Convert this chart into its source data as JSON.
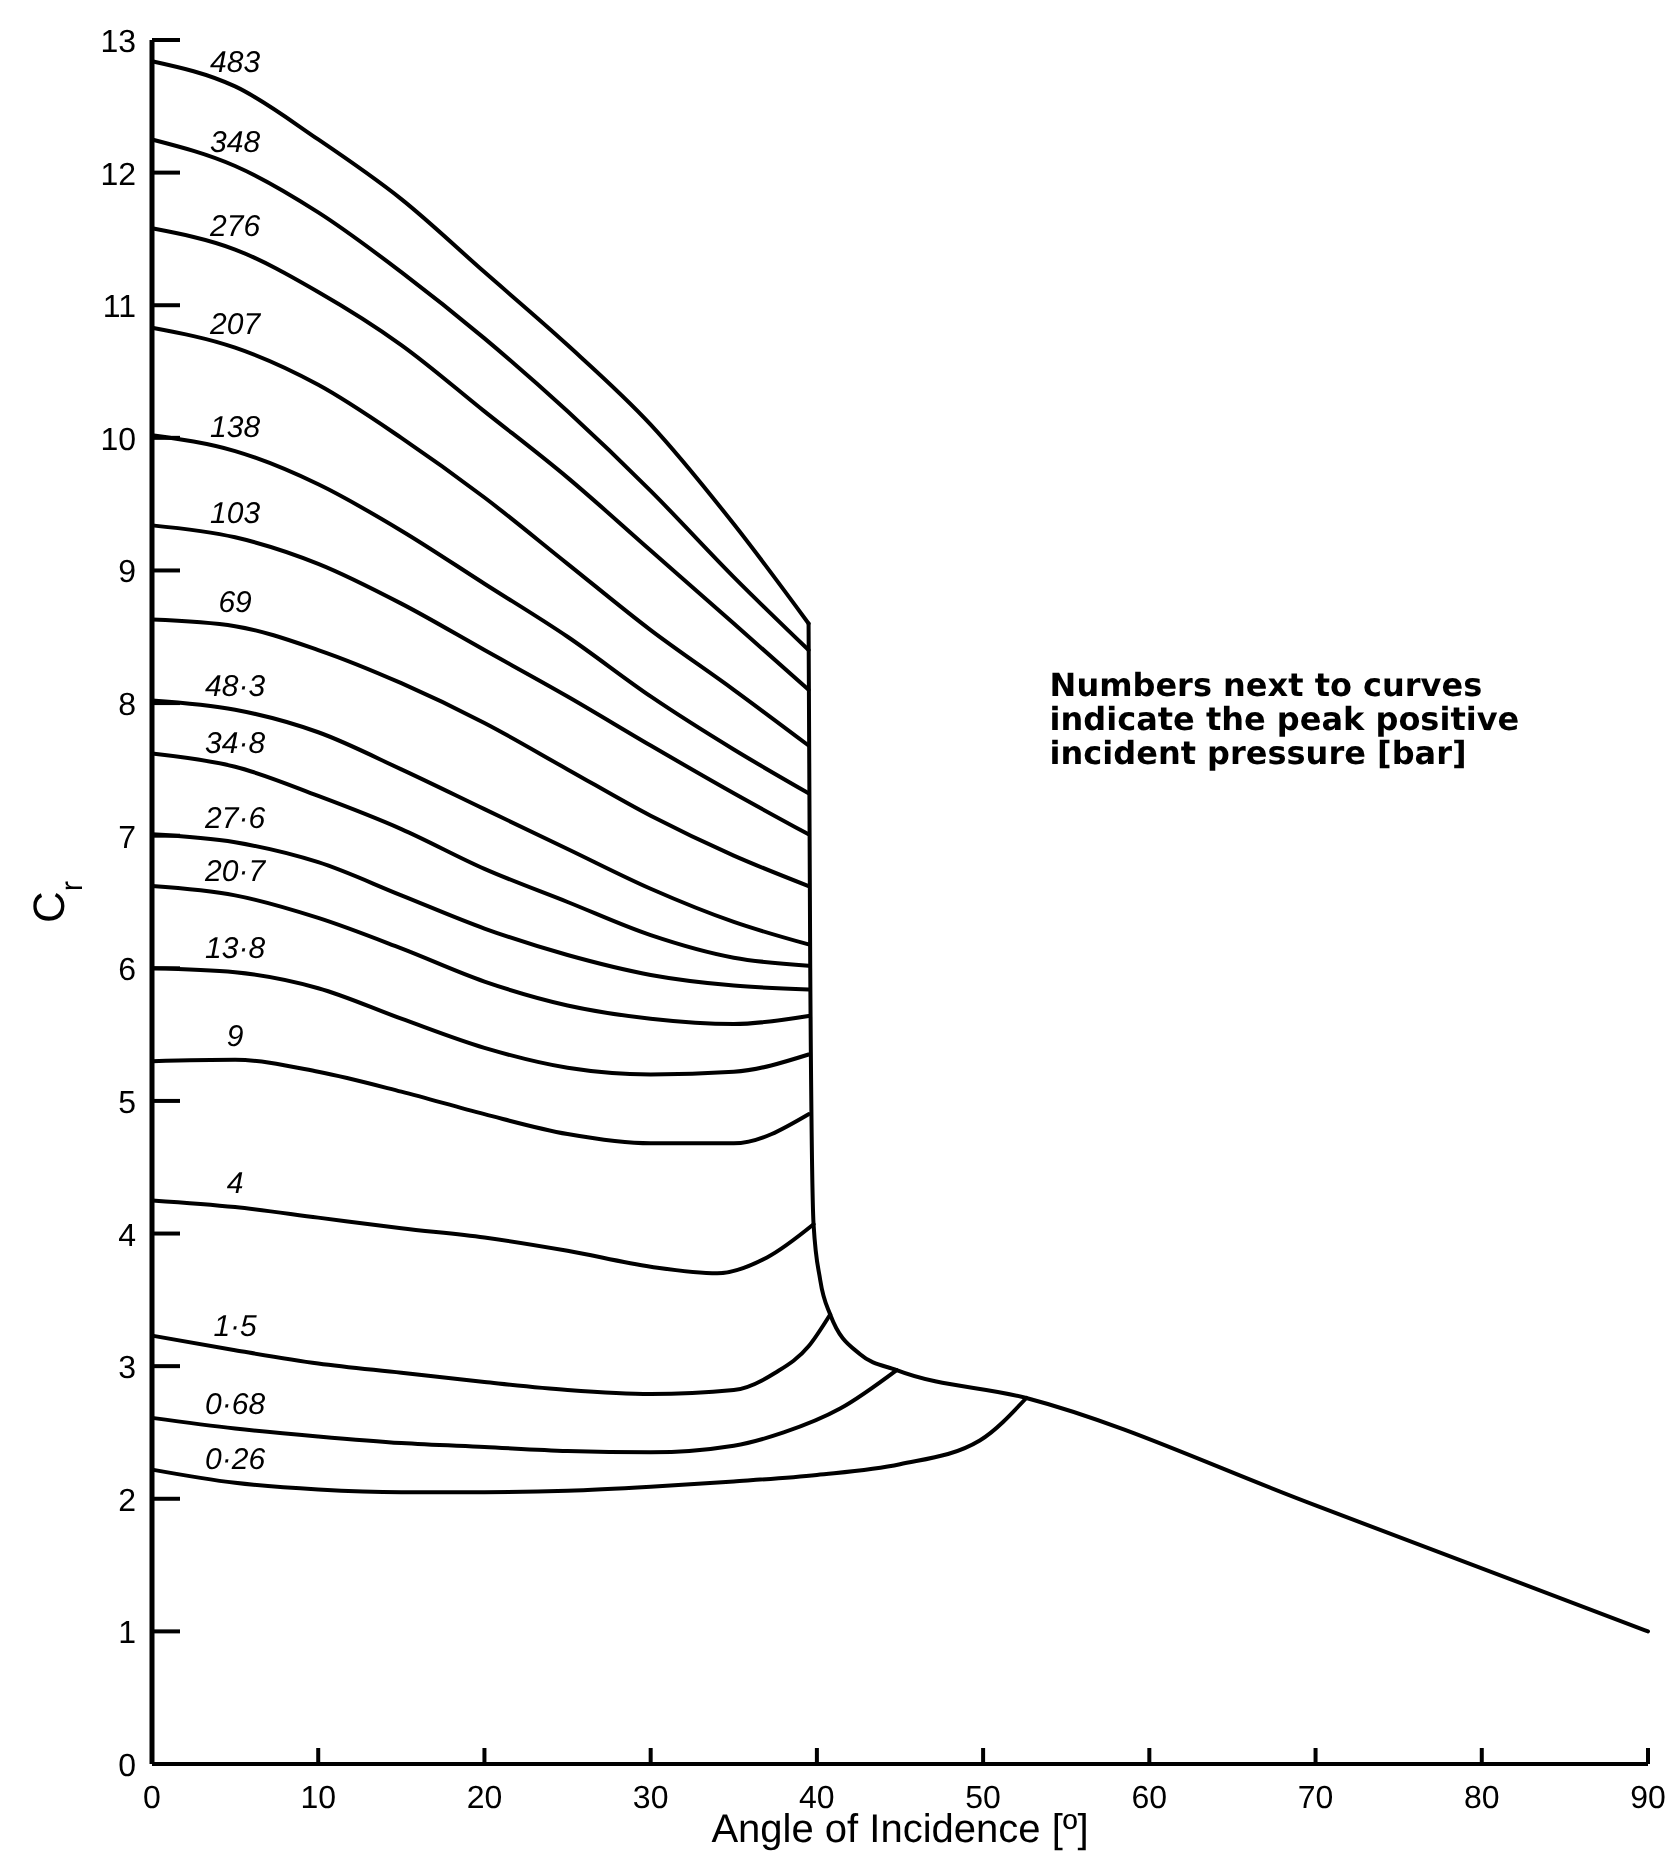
{
  "chart_data": {
    "type": "line",
    "xlabel": "Angle of Incidence [º]",
    "ylabel": "C$_{r}$",
    "xlim": [
      0,
      90
    ],
    "ylim": [
      0,
      13
    ],
    "xticks": [
      0,
      10,
      20,
      30,
      40,
      50,
      60,
      70,
      80,
      90
    ],
    "yticks": [
      0,
      1,
      2,
      3,
      4,
      5,
      6,
      7,
      8,
      9,
      10,
      11,
      12,
      13
    ],
    "annotations": [
      "Numbers next to curves indicate the peak positive incident pressure [bar]"
    ],
    "series": [
      {
        "name": "483",
        "color": "#000000",
        "x": [
          0,
          5,
          10,
          15,
          20,
          25,
          30,
          35,
          39.5
        ],
        "values": [
          12.84,
          12.65,
          12.25,
          11.8,
          11.25,
          10.7,
          10.1,
          9.35,
          8.6
        ]
      },
      {
        "name": "348",
        "color": "#000000",
        "x": [
          0,
          5,
          10,
          15,
          20,
          25,
          30,
          35,
          39.5
        ],
        "values": [
          12.25,
          12.05,
          11.7,
          11.25,
          10.75,
          10.2,
          9.6,
          8.95,
          8.4
        ]
      },
      {
        "name": "276",
        "color": "#000000",
        "x": [
          0,
          5,
          10,
          15,
          20,
          25,
          30,
          35,
          39.5
        ],
        "values": [
          11.58,
          11.42,
          11.1,
          10.7,
          10.2,
          9.7,
          9.15,
          8.6,
          8.1
        ]
      },
      {
        "name": "207",
        "color": "#000000",
        "x": [
          0,
          5,
          10,
          15,
          20,
          25,
          30,
          35,
          39.5
        ],
        "values": [
          10.83,
          10.68,
          10.4,
          10.0,
          9.55,
          9.05,
          8.55,
          8.1,
          7.68
        ]
      },
      {
        "name": "138",
        "color": "#000000",
        "x": [
          0,
          5,
          10,
          15,
          20,
          25,
          30,
          35,
          39.5
        ],
        "values": [
          10.02,
          9.9,
          9.65,
          9.3,
          8.9,
          8.5,
          8.05,
          7.65,
          7.32
        ]
      },
      {
        "name": "103",
        "color": "#000000",
        "x": [
          0,
          5,
          10,
          15,
          20,
          25,
          30,
          35,
          39.5
        ],
        "values": [
          9.34,
          9.25,
          9.05,
          8.75,
          8.4,
          8.05,
          7.68,
          7.32,
          7.01
        ]
      },
      {
        "name": "69",
        "color": "#000000",
        "x": [
          0,
          5,
          10,
          15,
          20,
          25,
          30,
          35,
          39.5
        ],
        "values": [
          8.63,
          8.58,
          8.4,
          8.15,
          7.85,
          7.5,
          7.15,
          6.85,
          6.62
        ]
      },
      {
        "name": "48·3",
        "color": "#000000",
        "x": [
          0,
          5,
          10,
          15,
          20,
          25,
          30,
          35,
          39.5
        ],
        "values": [
          8.02,
          7.95,
          7.78,
          7.5,
          7.2,
          6.9,
          6.6,
          6.35,
          6.18
        ]
      },
      {
        "name": "34·8",
        "color": "#000000",
        "x": [
          0,
          5,
          10,
          15,
          20,
          25,
          30,
          35,
          39.5
        ],
        "values": [
          7.62,
          7.52,
          7.3,
          7.05,
          6.75,
          6.5,
          6.25,
          6.08,
          6.02
        ]
      },
      {
        "name": "27·6",
        "color": "#000000",
        "x": [
          0,
          5,
          10,
          15,
          20,
          25,
          30,
          35,
          39.5
        ],
        "values": [
          7.01,
          6.95,
          6.8,
          6.55,
          6.3,
          6.1,
          5.95,
          5.87,
          5.84
        ]
      },
      {
        "name": "20·7",
        "color": "#000000",
        "x": [
          0,
          5,
          10,
          15,
          20,
          25,
          30,
          35,
          39.5
        ],
        "values": [
          6.62,
          6.55,
          6.38,
          6.15,
          5.9,
          5.72,
          5.62,
          5.58,
          5.64
        ]
      },
      {
        "name": "13·8",
        "color": "#000000",
        "x": [
          0,
          5,
          10,
          15,
          20,
          25,
          30,
          35,
          39.5
        ],
        "values": [
          6.0,
          5.97,
          5.85,
          5.62,
          5.4,
          5.25,
          5.2,
          5.22,
          5.35
        ]
      },
      {
        "name": "9",
        "color": "#000000",
        "x": [
          0,
          5,
          10,
          15,
          20,
          25,
          30,
          35,
          39.5
        ],
        "values": [
          5.3,
          5.31,
          5.22,
          5.07,
          4.9,
          4.75,
          4.68,
          4.68,
          4.9
        ]
      },
      {
        "name": "4",
        "color": "#000000",
        "x": [
          0,
          5,
          10,
          15,
          20,
          25,
          30,
          34,
          37,
          39.8
        ],
        "values": [
          4.25,
          4.2,
          4.12,
          4.04,
          3.97,
          3.87,
          3.75,
          3.7,
          3.82,
          4.07
        ]
      },
      {
        "name": "1·5",
        "color": "#000000",
        "x": [
          0,
          5,
          10,
          15,
          20,
          25,
          30,
          35,
          37.5,
          39.5,
          40.8
        ],
        "values": [
          3.23,
          3.12,
          3.02,
          2.95,
          2.88,
          2.82,
          2.79,
          2.82,
          2.95,
          3.15,
          3.39
        ]
      },
      {
        "name": "0·68",
        "color": "#000000",
        "x": [
          0,
          5,
          10,
          15,
          20,
          25,
          30,
          35,
          38,
          41.4,
          44.8
        ],
        "values": [
          2.61,
          2.53,
          2.47,
          2.42,
          2.39,
          2.36,
          2.35,
          2.4,
          2.5,
          2.68,
          2.97
        ]
      },
      {
        "name": "0·26",
        "color": "#000000",
        "x": [
          0,
          5,
          10,
          15,
          20,
          25,
          30,
          35,
          40,
          45,
          49.8,
          52.6
        ],
        "values": [
          2.22,
          2.12,
          2.07,
          2.05,
          2.05,
          2.06,
          2.09,
          2.13,
          2.18,
          2.26,
          2.44,
          2.76
        ]
      },
      {
        "color": "#000000",
        "x": [
          39.5,
          39.6,
          39.8,
          40.2,
          40.8,
          42.6,
          44.8,
          52.6,
          70,
          90
        ],
        "values": [
          8.6,
          6,
          4.07,
          3.65,
          3.39,
          3.09,
          2.97,
          2.76,
          1.95,
          1.0
        ]
      }
    ]
  }
}
